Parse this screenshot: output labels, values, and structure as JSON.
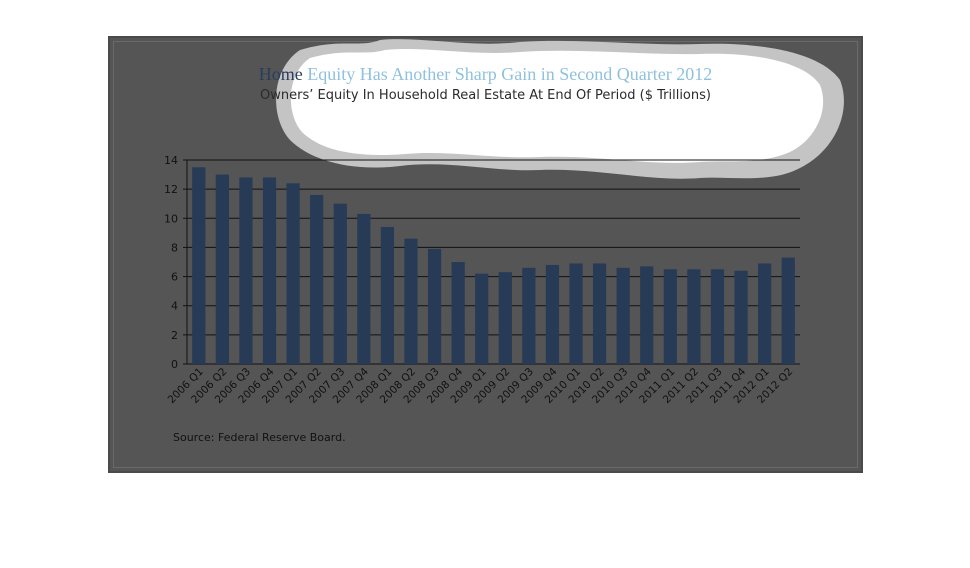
{
  "chart_data": {
    "type": "bar",
    "title_part1": "Home",
    "title_part2": "Equity Has Another Sharp Gain in Second Quarter 2012",
    "subtitle": "Owners’ Equity In Household Real Estate At End Of Period ($ Trillions)",
    "source": "Source:  Federal Reserve Board.",
    "xlabel": "",
    "ylabel": "",
    "ylim": [
      0,
      14
    ],
    "yticks": [
      0,
      2,
      4,
      6,
      8,
      10,
      12,
      14
    ],
    "grid": true,
    "categories": [
      "2006 Q1",
      "2006 Q2",
      "2006 Q3",
      "2006 Q4",
      "2007 Q1",
      "2007 Q2",
      "2007 Q3",
      "2007 Q4",
      "2008 Q1",
      "2008 Q2",
      "2008 Q3",
      "2008 Q4",
      "2009 Q1",
      "2009 Q2",
      "2009 Q3",
      "2009 Q4",
      "2010 Q1",
      "2010 Q2",
      "2010 Q3",
      "2010 Q4",
      "2011 Q1",
      "2011 Q2",
      "2011 Q3",
      "2011 Q4",
      "2012 Q1",
      "2012 Q2"
    ],
    "values": [
      13.5,
      13.0,
      12.8,
      12.8,
      12.4,
      11.6,
      11.0,
      10.3,
      9.4,
      8.6,
      7.9,
      7.0,
      6.2,
      6.3,
      6.6,
      6.8,
      6.9,
      6.9,
      6.6,
      6.7,
      6.5,
      6.5,
      6.5,
      6.4,
      6.9,
      7.3
    ],
    "colors": {
      "bar": "#273a56",
      "background": "#555555",
      "grid": "#111111",
      "title": "#8fc1df",
      "title_dark": "#2a3d5a",
      "blob": "#ffffff",
      "blob_ring": "#c4c4c4"
    }
  }
}
